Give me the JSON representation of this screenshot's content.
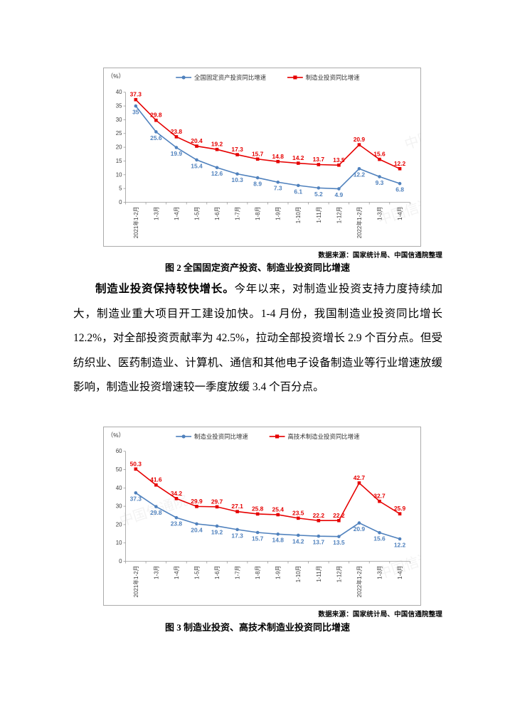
{
  "page": {
    "figure2": {
      "source": "数据来源：国家统计局、中国信通院整理",
      "caption": "图 2  全国固定资产投资、制造业投资同比增速"
    },
    "paragraph": {
      "bold_lead": "制造业投资保持较快增长。",
      "body": "今年以来，对制造业投资支持力度持续加大，制造业重大项目开工建设加快。1-4 月份，我国制造业投资同比增长 12.2%，对全部投资贡献率为 42.5%，拉动全部投资增长 2.9 个百分点。但受纺织业、医药制造业、计算机、通信和其他电子设备制造业等行业增速放缓影响，制造业投资增速较一季度放缓 3.4 个百分点。"
    },
    "figure3": {
      "source": "数据来源：国家统计局、中国信通院整理",
      "caption": "图 3  制造业投资、高技术制造业投资同比增速"
    }
  },
  "watermark_text": "中国信通院",
  "colors": {
    "blue": "#4f81bd",
    "red": "#e60000"
  },
  "chart_data": [
    {
      "type": "line",
      "title": "全国固定资产投资、制造业投资同比增速",
      "unit_label": "（%）",
      "categories": [
        "2021年1-2月",
        "1-3月",
        "1-4月",
        "1-5月",
        "1-6月",
        "1-7月",
        "1-8月",
        "1-9月",
        "1-10月",
        "1-11月",
        "1-12月",
        "2022年1-2月",
        "1-3月",
        "1-4月"
      ],
      "series": [
        {
          "name": "全国固定资产投资同比增速",
          "color": "#4f81bd",
          "marker": "circle",
          "label_position": "below",
          "values": [
            35,
            25.6,
            19.9,
            15.4,
            12.6,
            10.3,
            8.9,
            7.3,
            6.1,
            5.2,
            4.9,
            12.2,
            9.3,
            6.8
          ]
        },
        {
          "name": "制造业投资同比增速",
          "color": "#e60000",
          "marker": "square",
          "label_position": "above",
          "values": [
            37.3,
            29.8,
            23.8,
            20.4,
            19.2,
            17.3,
            15.7,
            14.8,
            14.2,
            13.7,
            13.5,
            20.9,
            15.6,
            12.2
          ]
        }
      ],
      "ylim": [
        0,
        40
      ],
      "ytick_step": 5,
      "legend_position": "top",
      "grid": false,
      "xlabel": "",
      "ylabel": "（%）"
    },
    {
      "type": "line",
      "title": "制造业投资、高技术制造业投资同比增速",
      "unit_label": "（%）",
      "categories": [
        "2021年1-2月",
        "1-3月",
        "1-4月",
        "1-5月",
        "1-6月",
        "1-7月",
        "1-8月",
        "1-9月",
        "1-10月",
        "1-11月",
        "1-12月",
        "2022年1-2月",
        "1-3月",
        "1-4月"
      ],
      "series": [
        {
          "name": "制造业投资同比增速",
          "color": "#4f81bd",
          "marker": "circle",
          "label_position": "below",
          "values": [
            37.3,
            29.8,
            23.8,
            20.4,
            19.2,
            17.3,
            15.7,
            14.8,
            14.2,
            13.7,
            13.5,
            20.9,
            15.6,
            12.2
          ]
        },
        {
          "name": "高技术制造业投资同比增速",
          "color": "#e60000",
          "marker": "square",
          "label_position": "above",
          "values": [
            50.3,
            41.6,
            34.2,
            29.9,
            29.7,
            27.1,
            25.8,
            25.4,
            23.5,
            22.2,
            22.2,
            42.7,
            32.7,
            25.9
          ]
        }
      ],
      "ylim": [
        0,
        60
      ],
      "ytick_step": 10,
      "legend_position": "top",
      "grid": false,
      "xlabel": "",
      "ylabel": "（%）"
    }
  ]
}
